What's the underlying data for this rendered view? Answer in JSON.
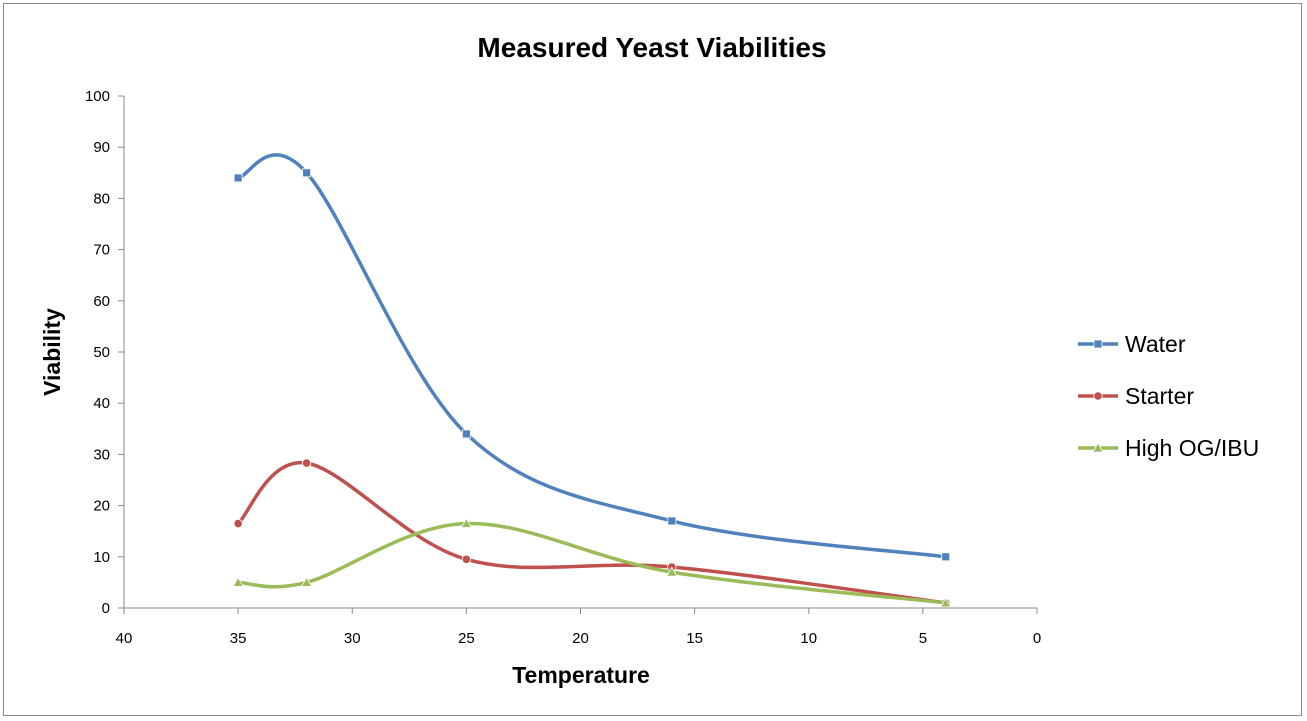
{
  "chart_data": {
    "type": "line",
    "title": "Measured Yeast Viabilities",
    "xlabel": "Temperature",
    "ylabel": "Viability",
    "xlim": [
      40,
      0
    ],
    "ylim": [
      0,
      100
    ],
    "x_reversed": true,
    "x_ticks": [
      40,
      35,
      30,
      25,
      20,
      15,
      10,
      5,
      0
    ],
    "y_ticks": [
      0,
      10,
      20,
      30,
      40,
      50,
      60,
      70,
      80,
      90,
      100
    ],
    "grid": false,
    "legend_position": "right",
    "smooth": true,
    "series": [
      {
        "name": "Water",
        "color": "#4f81bd",
        "marker": "square",
        "points": [
          [
            35,
            84
          ],
          [
            32,
            85
          ],
          [
            25,
            34
          ],
          [
            16,
            17
          ],
          [
            4,
            10
          ]
        ]
      },
      {
        "name": "Starter",
        "color": "#c0504d",
        "marker": "circle",
        "points": [
          [
            35,
            16.5
          ],
          [
            32,
            28.3
          ],
          [
            25,
            9.5
          ],
          [
            16,
            8
          ],
          [
            4,
            1
          ]
        ]
      },
      {
        "name": "High OG/IBU",
        "color": "#9bbb59",
        "marker": "triangle",
        "points": [
          [
            35,
            5
          ],
          [
            32,
            5
          ],
          [
            25,
            16.5
          ],
          [
            16,
            7
          ],
          [
            4,
            1
          ]
        ]
      }
    ]
  }
}
